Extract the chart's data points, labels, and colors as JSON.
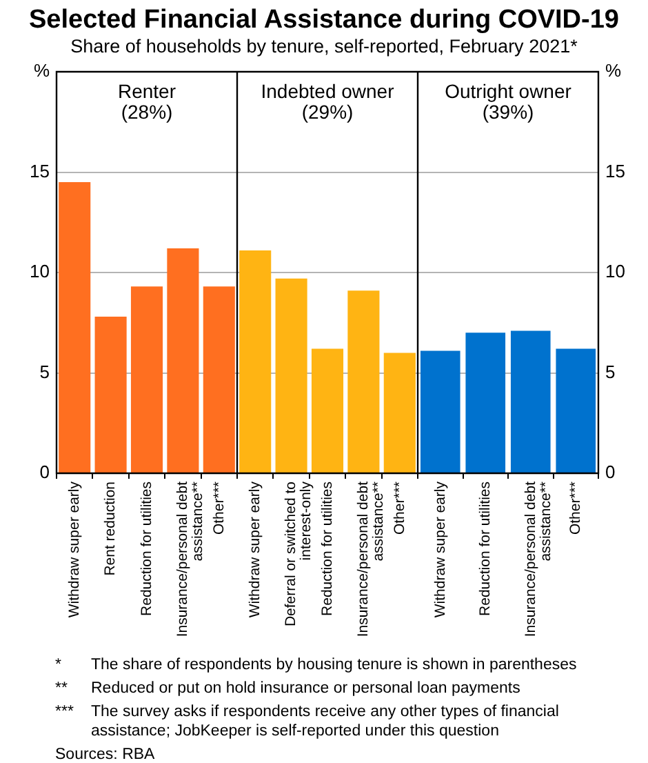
{
  "chart_data": [
    {
      "type": "other",
      "title": "Selected Financial Assistance during COVID-19",
      "subtitle": "Share of households by tenure, self-reported, February 2021*"
    },
    {
      "type": "bar",
      "title": "Renter",
      "subtitle": "(28%)",
      "categories": [
        "Withdraw super early",
        "Rent reduction",
        "Reduction for utilities",
        "Insurance/personal debt assistance**",
        "Other***"
      ],
      "values": [
        14.5,
        7.8,
        9.3,
        11.2,
        9.3
      ],
      "color": "#ff6f20",
      "ylim": [
        0,
        20
      ],
      "yticks": [
        0,
        5,
        10,
        15,
        {
          "value": 20,
          "label": "%"
        }
      ],
      "grid": "y"
    },
    {
      "type": "bar",
      "title": "Indebted owner",
      "subtitle": "(29%)",
      "categories": [
        "Withdraw super early",
        "Deferral or switched to interest-only",
        "Reduction for utilities",
        "Insurance/personal debt assistance**",
        "Other***"
      ],
      "values": [
        11.1,
        9.7,
        6.2,
        9.1,
        6.0
      ],
      "color": "#ffb413",
      "ylim": [
        0,
        20
      ],
      "yticks": [
        0,
        5,
        10,
        15,
        20
      ],
      "grid": "y",
      "tick_labels": "x"
    },
    {
      "type": "bar",
      "title": "Outright owner",
      "subtitle": "(39%)",
      "categories": [
        "Withdraw super early",
        "Reduction for utilities",
        "Insurance/personal debt assistance**",
        "Other***"
      ],
      "series": [
        {
          "color": "#0072ce",
          "values": [
            6.1,
            7.0,
            7.1,
            6.2
          ],
          "axis": "y2"
        }
      ],
      "y2lim": [
        0,
        20
      ],
      "y2ticks": [
        0,
        5,
        10,
        15,
        {
          "value": 20,
          "label": "%"
        }
      ],
      "grid": "y"
    },
    {
      "type": "other",
      "annotations": [
        "* The share of respondents by housing tenure is shown in parentheses",
        "** Reduced or put on hold insurance or personal loan payments",
        "*** The survey asks if respondents receive any other types of financial assistance; JobKeeper is self-reported under this question",
        "Sources: RBA"
      ]
    }
  ]
}
